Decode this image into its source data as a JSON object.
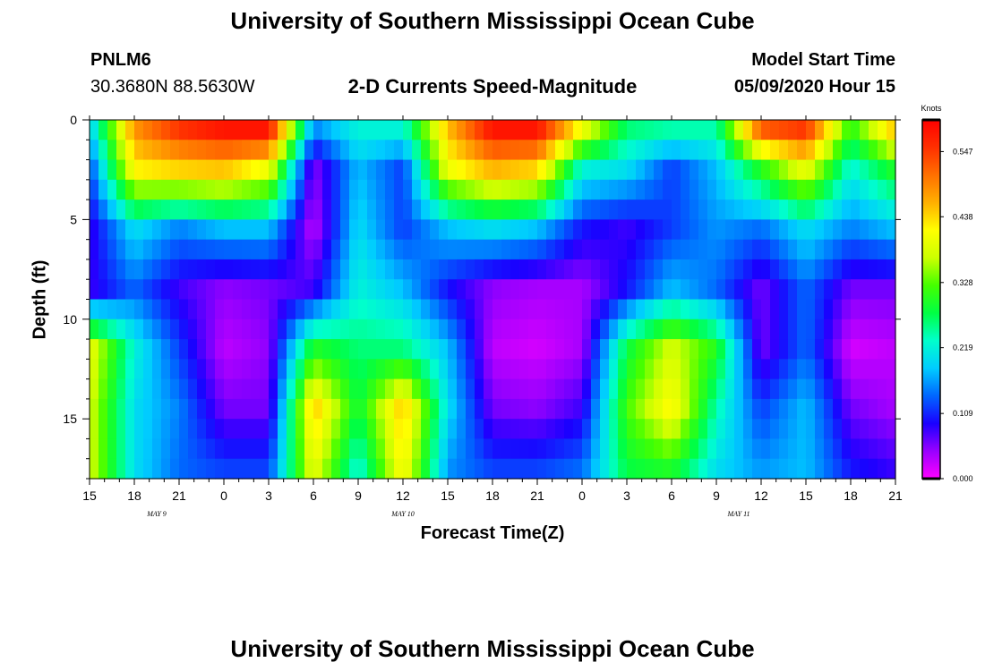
{
  "header": {
    "title": "University of Southern Mississippi Ocean Cube",
    "footer_title": "University of Southern Mississippi Ocean Cube",
    "station_id": "PNLM6",
    "station_coords": "30.3680N 88.5630W",
    "model_start_label": "Model Start Time",
    "model_start_value": "05/09/2020 Hour 15"
  },
  "chart_data": {
    "type": "heatmap",
    "title": "2-D Currents Speed-Magnitude",
    "xlabel": "Forecast Time(Z)",
    "ylabel": "Depth (ft)",
    "x_tick_labels": [
      "15",
      "18",
      "21",
      "0",
      "3",
      "6",
      "9",
      "12",
      "15",
      "18",
      "21",
      "0",
      "3",
      "6",
      "9",
      "12",
      "15",
      "18",
      "21"
    ],
    "x_range_hours_from_start": [
      0,
      54
    ],
    "date_labels": [
      {
        "text": "MAY 9",
        "hour": 4.5
      },
      {
        "text": "MAY 10",
        "hour": 21
      },
      {
        "text": "MAY 11",
        "hour": 43.5
      }
    ],
    "y_ticks": [
      0,
      5,
      10,
      15
    ],
    "y_tick_labels": [
      "0",
      "5",
      "10",
      "15"
    ],
    "ylim": [
      0,
      18
    ],
    "y_inverted": true,
    "colorbar": {
      "title": "Knots",
      "min": 0.0,
      "max": 0.6,
      "labels": [
        "0.547",
        "0.438",
        "0.328",
        "0.219",
        "0.109",
        "0.000"
      ],
      "label_values": [
        0.547,
        0.438,
        0.328,
        0.219,
        0.109,
        0.0
      ],
      "colors": [
        "#ff00ff",
        "#9900ff",
        "#1a00ff",
        "#0066ff",
        "#00ccff",
        "#00ffcc",
        "#00ff44",
        "#44ff00",
        "#ccff00",
        "#ffff00",
        "#ffb000",
        "#ff7000",
        "#ff3000",
        "#ff0000"
      ]
    },
    "profile_times_hours": [
      0,
      3,
      6,
      9,
      12,
      15,
      18,
      21,
      24,
      27,
      30,
      33,
      36,
      39,
      42,
      45,
      48,
      51,
      54
    ],
    "profile_depths_ft": [
      0.5,
      2.5,
      5.5,
      8.5,
      11.5,
      14.5,
      17.5
    ],
    "speed_knots": [
      [
        0.18,
        0.12,
        0.08,
        0.08,
        0.4,
        0.38,
        0.38
      ],
      [
        0.48,
        0.42,
        0.2,
        0.14,
        0.22,
        0.2,
        0.2
      ],
      [
        0.55,
        0.44,
        0.15,
        0.08,
        0.12,
        0.15,
        0.14
      ],
      [
        0.58,
        0.45,
        0.18,
        0.05,
        0.03,
        0.06,
        0.12
      ],
      [
        0.58,
        0.4,
        0.18,
        0.06,
        0.05,
        0.06,
        0.12
      ],
      [
        0.15,
        0.05,
        0.03,
        0.08,
        0.3,
        0.45,
        0.4
      ],
      [
        0.22,
        0.18,
        0.2,
        0.22,
        0.26,
        0.28,
        0.22
      ],
      [
        0.22,
        0.12,
        0.12,
        0.18,
        0.26,
        0.45,
        0.42
      ],
      [
        0.45,
        0.4,
        0.18,
        0.1,
        0.18,
        0.2,
        0.16
      ],
      [
        0.58,
        0.46,
        0.2,
        0.05,
        0.03,
        0.06,
        0.12
      ],
      [
        0.58,
        0.44,
        0.18,
        0.04,
        0.02,
        0.05,
        0.12
      ],
      [
        0.4,
        0.22,
        0.1,
        0.04,
        0.04,
        0.08,
        0.14
      ],
      [
        0.26,
        0.2,
        0.08,
        0.1,
        0.28,
        0.32,
        0.28
      ],
      [
        0.24,
        0.12,
        0.12,
        0.18,
        0.38,
        0.42,
        0.3
      ],
      [
        0.24,
        0.18,
        0.16,
        0.14,
        0.3,
        0.24,
        0.2
      ],
      [
        0.52,
        0.3,
        0.14,
        0.06,
        0.06,
        0.12,
        0.16
      ],
      [
        0.55,
        0.4,
        0.2,
        0.14,
        0.14,
        0.18,
        0.18
      ],
      [
        0.3,
        0.22,
        0.15,
        0.06,
        0.02,
        0.06,
        0.1
      ],
      [
        0.45,
        0.3,
        0.18,
        0.06,
        0.03,
        0.04,
        0.08
      ]
    ]
  }
}
